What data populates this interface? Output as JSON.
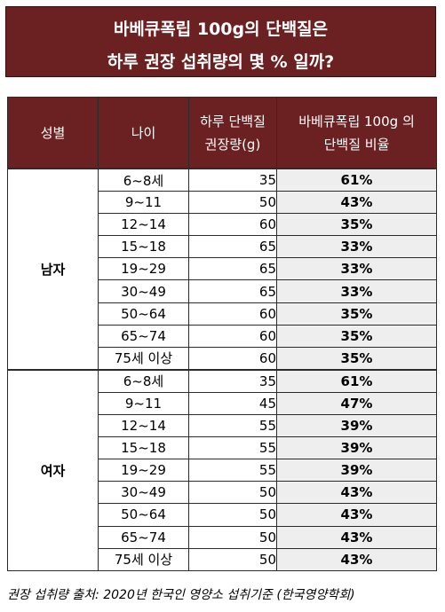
{
  "title": {
    "line1": "바베큐폭립 100g의 단백질은",
    "line2": "하루 권장 섭취량의 몇 % 일까?"
  },
  "table": {
    "headers": {
      "gender": "성별",
      "age": "나이",
      "intake_line1": "하루 단백질",
      "intake_line2": "권장량(g)",
      "ratio_line1": "바베큐폭립 100g 의",
      "ratio_line2": "단백질 비율"
    },
    "groups": [
      {
        "gender": "남자",
        "rows": [
          {
            "age": "6~8세",
            "amount": "35",
            "ratio": "61%"
          },
          {
            "age": "9~11",
            "amount": "50",
            "ratio": "43%"
          },
          {
            "age": "12~14",
            "amount": "60",
            "ratio": "35%"
          },
          {
            "age": "15~18",
            "amount": "65",
            "ratio": "33%"
          },
          {
            "age": "19~29",
            "amount": "65",
            "ratio": "33%"
          },
          {
            "age": "30~49",
            "amount": "65",
            "ratio": "33%"
          },
          {
            "age": "50~64",
            "amount": "60",
            "ratio": "35%"
          },
          {
            "age": "65~74",
            "amount": "60",
            "ratio": "35%"
          },
          {
            "age": "75세 이상",
            "amount": "60",
            "ratio": "35%"
          }
        ]
      },
      {
        "gender": "여자",
        "rows": [
          {
            "age": "6~8세",
            "amount": "35",
            "ratio": "61%"
          },
          {
            "age": "9~11",
            "amount": "45",
            "ratio": "47%"
          },
          {
            "age": "12~14",
            "amount": "55",
            "ratio": "39%"
          },
          {
            "age": "15~18",
            "amount": "55",
            "ratio": "39%"
          },
          {
            "age": "19~29",
            "amount": "55",
            "ratio": "39%"
          },
          {
            "age": "30~49",
            "amount": "50",
            "ratio": "43%"
          },
          {
            "age": "50~64",
            "amount": "50",
            "ratio": "43%"
          },
          {
            "age": "65~74",
            "amount": "50",
            "ratio": "43%"
          },
          {
            "age": "75세 이상",
            "amount": "50",
            "ratio": "43%"
          }
        ]
      }
    ]
  },
  "source": "권장 섭취량 출처: 2020년 한국인 영양소 섭취기준 (한국영양학회)",
  "colors": {
    "header_bg": "#6b2121",
    "ratio_bg": "#eeeeee"
  }
}
